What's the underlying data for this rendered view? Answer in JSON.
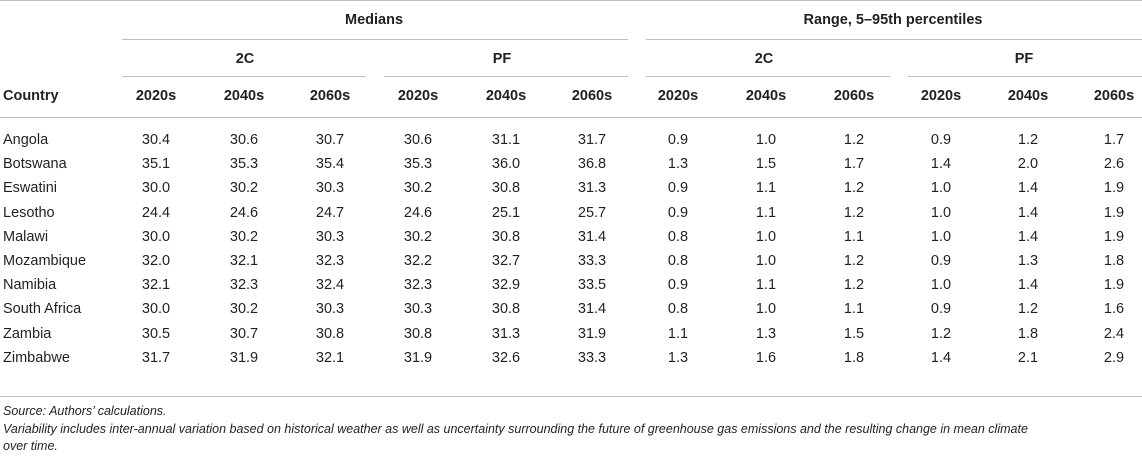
{
  "table": {
    "group_headers": {
      "medians": "Medians",
      "range": "Range, 5–95th percentiles"
    },
    "scenario_headers": [
      "2C",
      "PF",
      "2C",
      "PF"
    ],
    "column_headers": {
      "country": "Country",
      "periods": [
        "2020s",
        "2040s",
        "2060s",
        "2020s",
        "2040s",
        "2060s",
        "2020s",
        "2040s",
        "2060s",
        "2020s",
        "2040s",
        "2060s"
      ]
    },
    "rows": [
      {
        "country": "Angola",
        "values": [
          "30.4",
          "30.6",
          "30.7",
          "30.6",
          "31.1",
          "31.7",
          "0.9",
          "1.0",
          "1.2",
          "0.9",
          "1.2",
          "1.7"
        ]
      },
      {
        "country": "Botswana",
        "values": [
          "35.1",
          "35.3",
          "35.4",
          "35.3",
          "36.0",
          "36.8",
          "1.3",
          "1.5",
          "1.7",
          "1.4",
          "2.0",
          "2.6"
        ]
      },
      {
        "country": "Eswatini",
        "values": [
          "30.0",
          "30.2",
          "30.3",
          "30.2",
          "30.8",
          "31.3",
          "0.9",
          "1.1",
          "1.2",
          "1.0",
          "1.4",
          "1.9"
        ]
      },
      {
        "country": "Lesotho",
        "values": [
          "24.4",
          "24.6",
          "24.7",
          "24.6",
          "25.1",
          "25.7",
          "0.9",
          "1.1",
          "1.2",
          "1.0",
          "1.4",
          "1.9"
        ]
      },
      {
        "country": "Malawi",
        "values": [
          "30.0",
          "30.2",
          "30.3",
          "30.2",
          "30.8",
          "31.4",
          "0.8",
          "1.0",
          "1.1",
          "1.0",
          "1.4",
          "1.9"
        ]
      },
      {
        "country": "Mozambique",
        "values": [
          "32.0",
          "32.1",
          "32.3",
          "32.2",
          "32.7",
          "33.3",
          "0.8",
          "1.0",
          "1.2",
          "0.9",
          "1.3",
          "1.8"
        ]
      },
      {
        "country": "Namibia",
        "values": [
          "32.1",
          "32.3",
          "32.4",
          "32.3",
          "32.9",
          "33.5",
          "0.9",
          "1.1",
          "1.2",
          "1.0",
          "1.4",
          "1.9"
        ]
      },
      {
        "country": "South Africa",
        "values": [
          "30.0",
          "30.2",
          "30.3",
          "30.3",
          "30.8",
          "31.4",
          "0.8",
          "1.0",
          "1.1",
          "0.9",
          "1.2",
          "1.6"
        ]
      },
      {
        "country": "Zambia",
        "values": [
          "30.5",
          "30.7",
          "30.8",
          "30.8",
          "31.3",
          "31.9",
          "1.1",
          "1.3",
          "1.5",
          "1.2",
          "1.8",
          "2.4"
        ]
      },
      {
        "country": "Zimbabwe",
        "values": [
          "31.7",
          "31.9",
          "32.1",
          "31.9",
          "32.6",
          "33.3",
          "1.3",
          "1.6",
          "1.8",
          "1.4",
          "2.1",
          "2.9"
        ]
      }
    ]
  },
  "notes": {
    "source": "Source: Authors’ calculations.",
    "variability_line1": "Variability includes inter-annual variation based on historical weather as well as uncertainty surrounding the future of greenhouse gas emissions and the resulting change in mean climate",
    "variability_line2": "over time."
  }
}
